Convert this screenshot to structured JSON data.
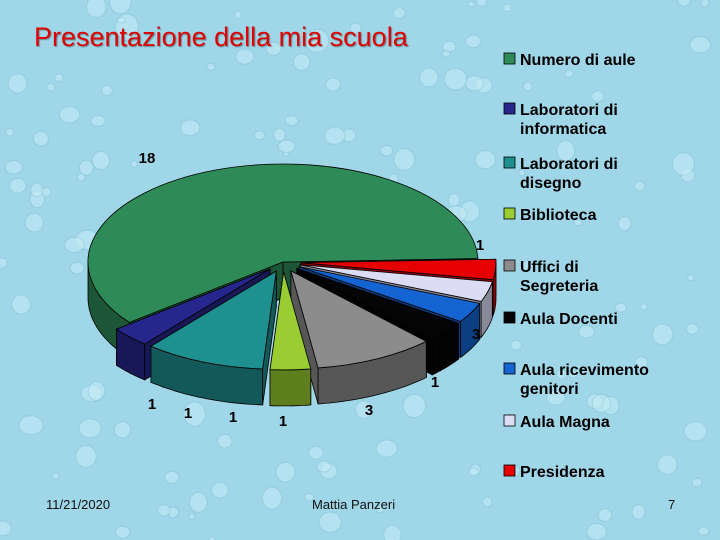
{
  "slide": {
    "title": "Presentazione della mia scuola",
    "footer_date": "11/21/2020",
    "footer_author": "Mattia Panzeri",
    "footer_page": "7",
    "background_color": "#9fd6e8",
    "title_color": "#e00000"
  },
  "chart_data": {
    "type": "pie",
    "title": "",
    "legend_position": "right",
    "categories": [
      "Numero di aule",
      "Laboratori di informatica",
      "Laboratori di disegno",
      "Biblioteca",
      "Uffici di Segreteria",
      "Aula Docenti",
      "Aula ricevimento genitori",
      "Aula Magna",
      "Presidenza"
    ],
    "values": [
      18,
      1,
      3,
      1,
      3,
      1,
      1,
      1,
      1
    ],
    "colors": [
      "#2e8b57",
      "#26268c",
      "#1e9090",
      "#9acd32",
      "#8c8c8c",
      "#050505",
      "#1464d2",
      "#dcdcf5",
      "#e60000"
    ]
  }
}
